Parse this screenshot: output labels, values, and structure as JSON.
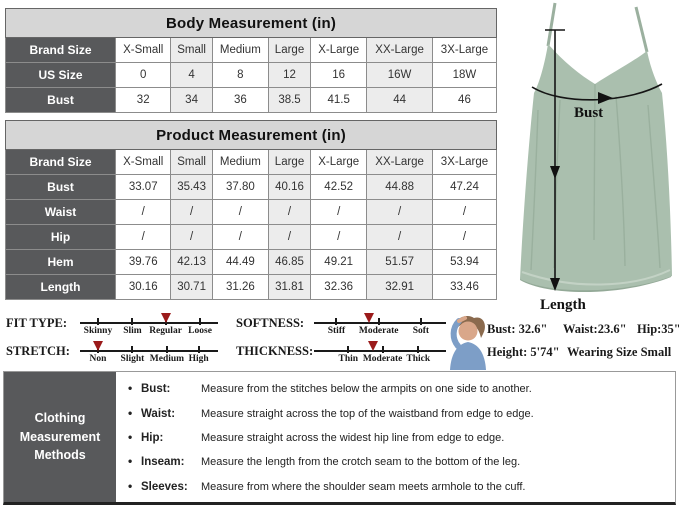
{
  "colors": {
    "accent": "#9b1b1b",
    "dark": "#58595b",
    "titlebar": "#d6d6d6",
    "colalt": "#ececec",
    "dress": "#aabfae"
  },
  "tables": [
    {
      "title": "Body Measurement (in)",
      "col_header": "Brand Size",
      "sizes": [
        "X-Small",
        "Small",
        "Medium",
        "Large",
        "X-Large",
        "XX-Large",
        "3X-Large"
      ],
      "rows": [
        {
          "label": "US Size",
          "values": [
            "0",
            "4",
            "8",
            "12",
            "16",
            "16W",
            "18W"
          ]
        },
        {
          "label": "Bust",
          "values": [
            "32",
            "34",
            "36",
            "38.5",
            "41.5",
            "44",
            "46"
          ]
        }
      ]
    },
    {
      "title": "Product Measurement (in)",
      "col_header": "Brand Size",
      "sizes": [
        "X-Small",
        "Small",
        "Medium",
        "Large",
        "X-Large",
        "XX-Large",
        "3X-Large"
      ],
      "rows": [
        {
          "label": "Bust",
          "values": [
            "33.07",
            "35.43",
            "37.80",
            "40.16",
            "42.52",
            "44.88",
            "47.24"
          ]
        },
        {
          "label": "Waist",
          "values": [
            "/",
            "/",
            "/",
            "/",
            "/",
            "/",
            "/"
          ]
        },
        {
          "label": "Hip",
          "values": [
            "/",
            "/",
            "/",
            "/",
            "/",
            "/",
            "/"
          ]
        },
        {
          "label": "Hem",
          "values": [
            "39.76",
            "42.13",
            "44.49",
            "46.85",
            "49.21",
            "51.57",
            "53.94"
          ]
        },
        {
          "label": "Length",
          "values": [
            "30.16",
            "30.71",
            "31.26",
            "31.81",
            "32.36",
            "32.91",
            "33.46"
          ]
        }
      ]
    }
  ],
  "sliders": [
    {
      "name": "FIT TYPE:",
      "labels": [
        "Skinny",
        "Slim",
        "Regular",
        "Loose"
      ],
      "ticks": [
        13,
        38,
        62,
        87
      ],
      "marker_pct": 62,
      "selected": "Regular"
    },
    {
      "name": "STRETCH:",
      "labels": [
        "Non",
        "Slight",
        "Medium",
        "High"
      ],
      "ticks": [
        13,
        38,
        63,
        86
      ],
      "marker_pct": 13,
      "selected": "Non"
    },
    {
      "name": "SOFTNESS:",
      "labels": [
        "Stiff",
        "Moderate",
        "Soft"
      ],
      "ticks": [
        17,
        49,
        81
      ],
      "marker_pct": 42,
      "selected": "Moderate"
    },
    {
      "name": "THICKNESS:",
      "labels": [
        "Thin",
        "Moderate",
        "Thick"
      ],
      "ticks": [
        26,
        52,
        79
      ],
      "marker_pct": 45,
      "selected": "Moderate"
    }
  ],
  "model": {
    "bust": "Bust: 32.6\"",
    "waist": "Waist:23.6\"",
    "hip": "Hip:35\"",
    "height": "Height: 5'74\"",
    "wearing": "Wearing Size Small"
  },
  "diagram": {
    "bust_label": "Bust",
    "length_label": "Length"
  },
  "methods": {
    "header": "Clothing Measurement Methods",
    "items": [
      {
        "term": "Bust:",
        "desc": "Measure from the stitches below the armpits on one side to another."
      },
      {
        "term": "Waist:",
        "desc": "Measure straight across the top of the waistband from edge to edge."
      },
      {
        "term": "Hip:",
        "desc": "Measure straight across the widest hip line from edge to edge."
      },
      {
        "term": "Inseam:",
        "desc": "Measure the length from the crotch seam to the bottom of the leg."
      },
      {
        "term": "Sleeves:",
        "desc": "Measure from where the shoulder seam meets armhole to the cuff."
      }
    ]
  }
}
